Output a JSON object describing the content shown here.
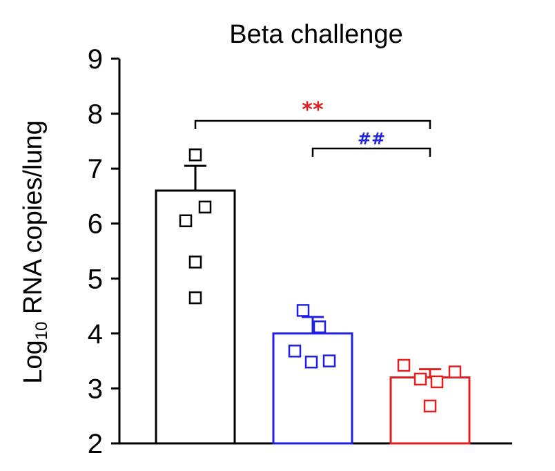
{
  "chart_data": {
    "type": "bar",
    "title": "Beta challenge",
    "ylabel_main": "Log",
    "ylabel_sub": "10",
    "ylabel_rest": " RNA copies/lung",
    "xlabel": "",
    "ylim": [
      2,
      9
    ],
    "yticks": [
      "2",
      "3",
      "4",
      "5",
      "6",
      "7",
      "8",
      "9"
    ],
    "categories": [
      "",
      "",
      ""
    ],
    "bars": [
      {
        "value": 6.6,
        "error": 0.45,
        "color": "#000000",
        "points": [
          7.25,
          6.3,
          6.05,
          5.3,
          4.65
        ]
      },
      {
        "value": 4.0,
        "error": 0.3,
        "color": "#2020e0",
        "points": [
          4.42,
          4.12,
          3.68,
          3.48,
          3.5
        ]
      },
      {
        "value": 3.2,
        "error": 0.15,
        "color": "#e02020",
        "points": [
          3.42,
          3.17,
          3.12,
          3.3,
          2.68
        ]
      }
    ],
    "significance": [
      {
        "from": 0,
        "to": 2,
        "label": "**",
        "color": "#e02020"
      },
      {
        "from": 1,
        "to": 2,
        "label": "##",
        "color": "#2020e0"
      }
    ],
    "grid": false,
    "legend": "none"
  }
}
